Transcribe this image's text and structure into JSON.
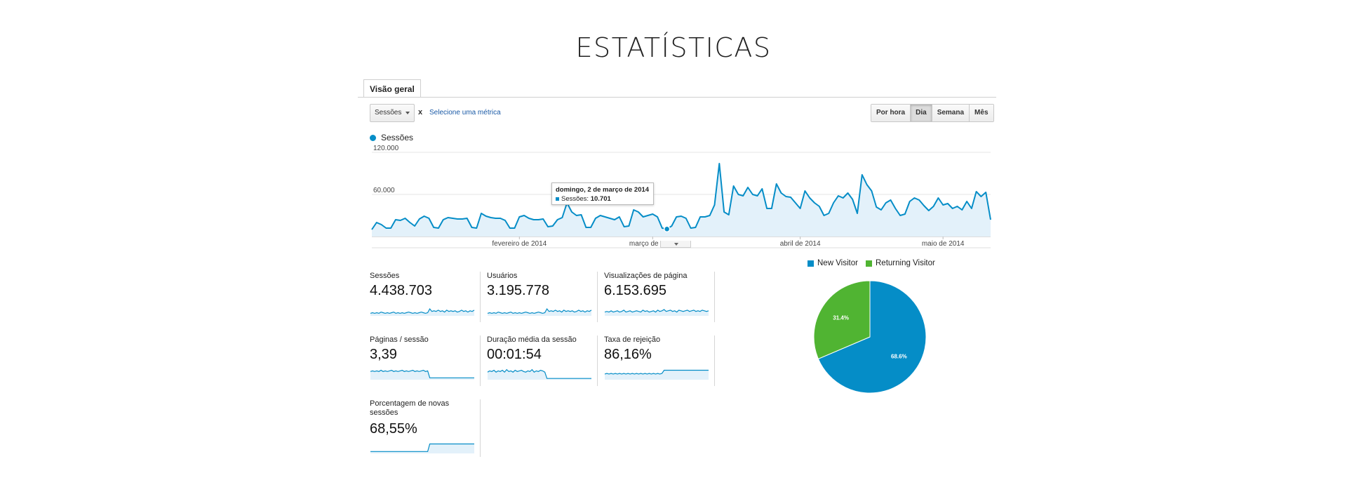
{
  "page": {
    "title": "ESTATÍSTICAS"
  },
  "tab": {
    "label": "Visão geral"
  },
  "toolbar": {
    "metric_select": "Sessões",
    "remove_label": "x",
    "add_metric_link": "Selecione uma métrica",
    "time_buttons": [
      "Por hora",
      "Dia",
      "Semana",
      "Mês"
    ],
    "active_time": "Dia"
  },
  "legend": {
    "series_label": "Sessões",
    "color": "#058dc7"
  },
  "tooltip": {
    "date": "domingo, 2 de março de 2014",
    "metric": "Sessões:",
    "value": "10.701"
  },
  "chart_data": [
    {
      "type": "area",
      "series": [
        {
          "name": "Sessões",
          "values": [
            10000,
            20000,
            17000,
            12000,
            12000,
            24000,
            23000,
            26000,
            20000,
            15000,
            25000,
            29000,
            26000,
            13000,
            12000,
            24000,
            27000,
            26000,
            25000,
            25000,
            26000,
            13000,
            12000,
            33000,
            29000,
            27000,
            26000,
            26000,
            23000,
            12000,
            12000,
            28000,
            30000,
            26000,
            24000,
            24000,
            25000,
            14000,
            15000,
            24000,
            27000,
            48000,
            35000,
            30000,
            31000,
            13000,
            13000,
            26000,
            30000,
            28000,
            26000,
            24000,
            28000,
            14000,
            15000,
            38000,
            35000,
            28000,
            30000,
            32000,
            28000,
            12000,
            10701,
            15000,
            28000,
            29000,
            26000,
            12000,
            13000,
            28000,
            28000,
            30000,
            45000,
            104000,
            35000,
            31000,
            72000,
            60000,
            58000,
            70000,
            60000,
            58000,
            68000,
            40000,
            40000,
            75000,
            62000,
            57000,
            56000,
            48000,
            40000,
            65000,
            55000,
            48000,
            43000,
            30000,
            33000,
            48000,
            58000,
            55000,
            62000,
            53000,
            33000,
            88000,
            74000,
            65000,
            42000,
            38000,
            48000,
            52000,
            40000,
            30000,
            32000,
            50000,
            55000,
            52000,
            44000,
            37000,
            43000,
            55000,
            45000,
            47000,
            40000,
            43000,
            38000,
            50000,
            40000,
            64000,
            57000,
            63000,
            24000
          ]
        }
      ],
      "y_ticks": [
        "120.000",
        "60.000"
      ],
      "ylim": [
        0,
        120000
      ],
      "x_tick_labels": [
        "fevereiro de 2014",
        "março de 2014",
        "abril de 2014",
        "maio de 2014"
      ],
      "highlight": {
        "label": "domingo, 2 de março de 2014",
        "value": 10701
      },
      "color": "#058dc7"
    },
    {
      "type": "pie",
      "series": [
        {
          "name": "New Visitor",
          "value": 68.6,
          "label": "68.6%",
          "color": "#058dc7"
        },
        {
          "name": "Returning Visitor",
          "value": 31.4,
          "label": "31.4%",
          "color": "#50b432"
        }
      ]
    }
  ],
  "scorecards": [
    {
      "label": "Sessões",
      "value": "4.438.703",
      "spark": [
        4,
        5,
        4,
        5,
        4,
        6,
        5,
        4,
        5,
        4,
        5,
        6,
        4,
        5,
        4,
        5,
        4,
        5,
        6,
        5,
        4,
        5,
        4,
        5,
        6,
        5,
        4,
        5,
        11,
        7,
        8,
        7,
        9,
        7,
        8,
        6,
        9,
        7,
        8,
        7,
        8,
        6,
        7,
        9,
        7,
        8,
        6,
        8,
        7,
        9
      ]
    },
    {
      "label": "Usuários",
      "value": "3.195.778",
      "spark": [
        4,
        5,
        4,
        5,
        4,
        6,
        5,
        4,
        5,
        4,
        5,
        6,
        4,
        5,
        4,
        5,
        4,
        5,
        6,
        5,
        4,
        5,
        4,
        5,
        6,
        5,
        4,
        5,
        11,
        7,
        8,
        7,
        9,
        7,
        8,
        6,
        9,
        7,
        8,
        7,
        8,
        6,
        7,
        9,
        7,
        8,
        6,
        8,
        7,
        9
      ]
    },
    {
      "label": "Visualizações de página",
      "value": "6.153.695",
      "spark": [
        6,
        7,
        6,
        8,
        6,
        7,
        8,
        6,
        7,
        9,
        6,
        7,
        8,
        6,
        7,
        8,
        7,
        6,
        9,
        7,
        8,
        6,
        7,
        8,
        6,
        9,
        7,
        8,
        10,
        7,
        8,
        9,
        7,
        8,
        6,
        9,
        8,
        7,
        8,
        9,
        7,
        8,
        9,
        7,
        8,
        7,
        9,
        8,
        7,
        8
      ]
    },
    {
      "label": "Páginas / sessão",
      "value": "3,39",
      "spark": [
        13,
        14,
        13,
        14,
        13,
        15,
        13,
        14,
        13,
        14,
        15,
        13,
        14,
        13,
        14,
        15,
        13,
        14,
        13,
        14,
        15,
        13,
        14,
        13,
        14,
        15,
        13,
        14,
        3,
        3,
        3,
        3,
        3,
        3,
        3,
        3,
        3,
        3,
        3,
        3,
        3,
        3,
        3,
        3,
        3,
        3,
        3,
        3,
        3,
        3
      ]
    },
    {
      "label": "Duração média da sessão",
      "value": "00:01:54",
      "spark": [
        12,
        14,
        13,
        15,
        12,
        14,
        13,
        15,
        12,
        16,
        13,
        14,
        12,
        15,
        13,
        14,
        15,
        13,
        12,
        14,
        13,
        16,
        12,
        14,
        13,
        15,
        14,
        12,
        2,
        2,
        2,
        2,
        2,
        2,
        2,
        2,
        2,
        2,
        2,
        2,
        2,
        2,
        2,
        2,
        2,
        2,
        2,
        2,
        2,
        2
      ]
    },
    {
      "label": "Taxa de rejeição",
      "value": "86,16%",
      "spark": [
        9,
        10,
        9,
        10,
        9,
        10,
        9,
        10,
        9,
        10,
        9,
        10,
        9,
        10,
        9,
        10,
        9,
        10,
        9,
        10,
        9,
        10,
        9,
        10,
        9,
        10,
        9,
        10,
        15,
        15,
        15,
        15,
        15,
        15,
        15,
        15,
        15,
        15,
        15,
        15,
        15,
        15,
        15,
        15,
        15,
        15,
        15,
        15,
        15,
        15
      ]
    },
    {
      "label": "Porcentagem de novas sessões",
      "value": "68,55%",
      "spark": [
        3,
        3,
        3,
        3,
        3,
        3,
        3,
        3,
        3,
        3,
        3,
        3,
        3,
        3,
        3,
        3,
        3,
        3,
        3,
        3,
        3,
        3,
        3,
        3,
        3,
        3,
        3,
        3,
        15,
        15,
        15,
        15,
        15,
        15,
        15,
        15,
        15,
        15,
        15,
        15,
        15,
        15,
        15,
        15,
        15,
        15,
        15,
        15,
        15,
        15
      ]
    }
  ]
}
